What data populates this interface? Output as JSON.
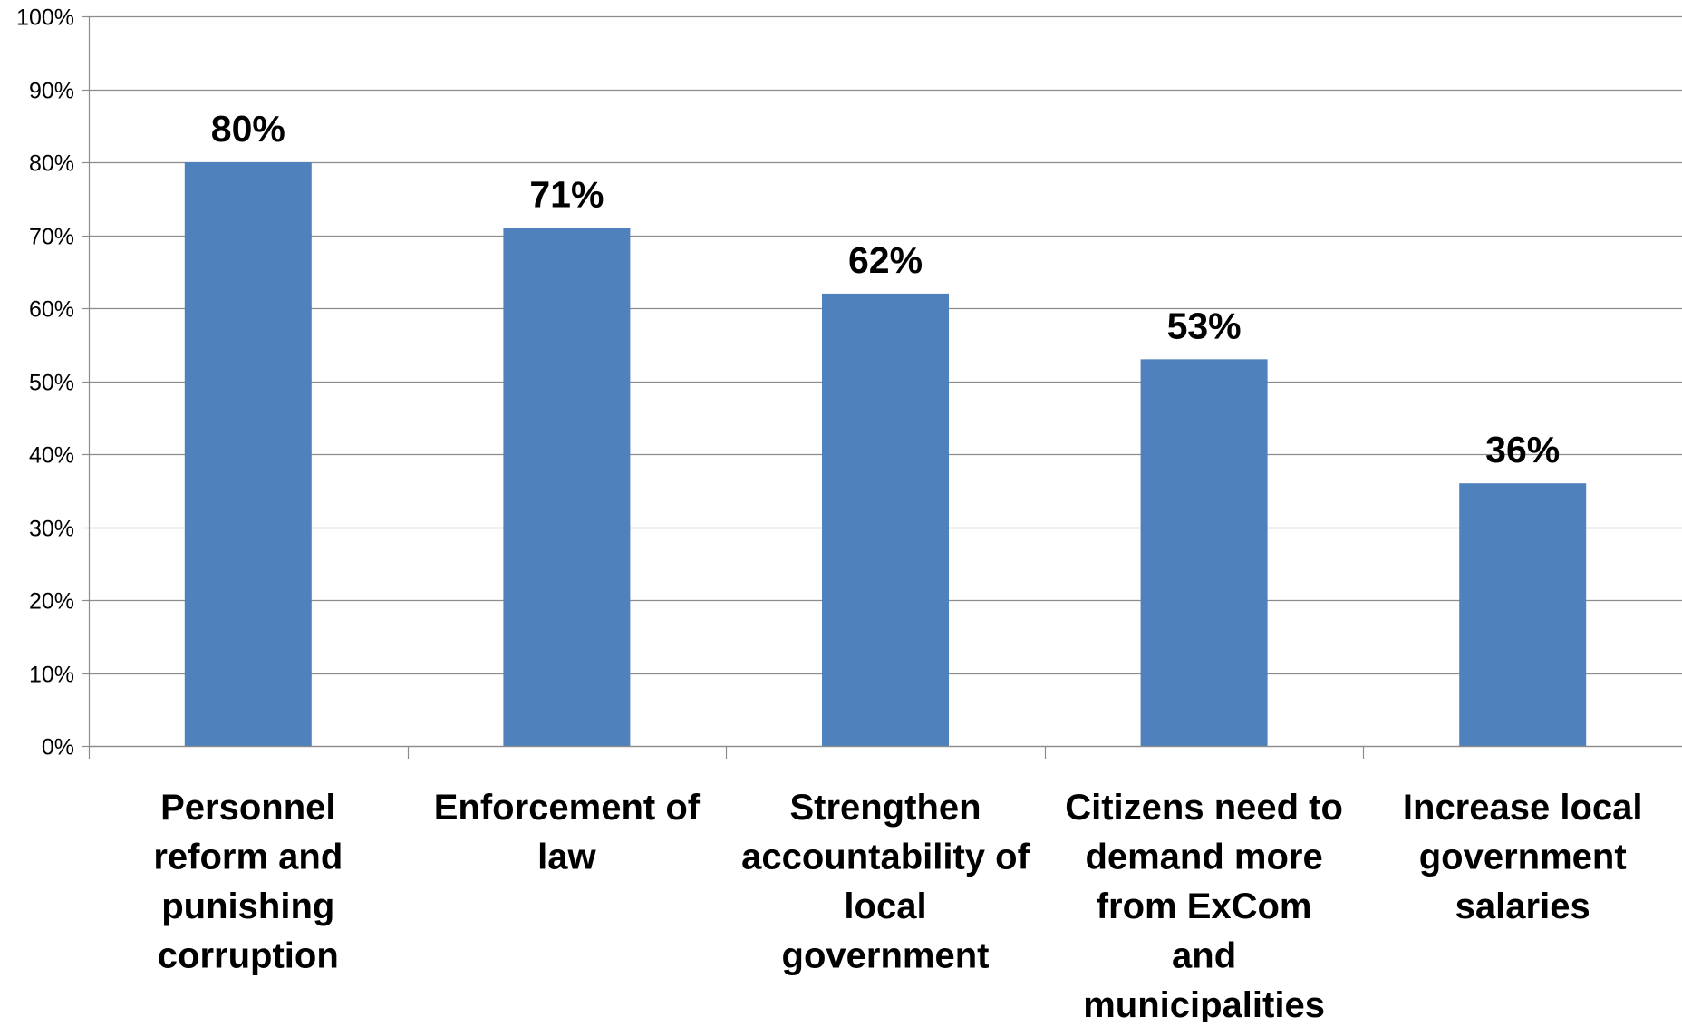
{
  "chart_data": {
    "type": "bar",
    "title": "",
    "xlabel": "",
    "ylabel": "",
    "ylim": [
      0,
      100
    ],
    "y_ticks": [
      "0%",
      "10%",
      "20%",
      "30%",
      "40%",
      "50%",
      "60%",
      "70%",
      "80%",
      "90%",
      "100%"
    ],
    "grid": true,
    "legend": "none",
    "categories": [
      "Personnel reform and punishing corruption",
      "Enforcement of law",
      "Strengthen accountability of local government",
      "Citizens need to demand more from ExCom and municipalities",
      "Increase local government salaries"
    ],
    "category_label_lines": [
      [
        "Personnel",
        "reform and",
        "punishing",
        "corruption"
      ],
      [
        "Enforcement of",
        "law"
      ],
      [
        "Strengthen",
        "accountability of",
        "local",
        "government"
      ],
      [
        "Citizens need to",
        "demand more",
        "from ExCom",
        "and",
        "municipalities"
      ],
      [
        "Increase local",
        "government",
        "salaries"
      ]
    ],
    "values": [
      80,
      71,
      62,
      53,
      36
    ],
    "data_labels": [
      "80%",
      "71%",
      "62%",
      "53%",
      "36%"
    ],
    "colors": {
      "bar": "#4f81bd",
      "grid": "#8c8c8c",
      "axis": "#8c8c8c"
    }
  }
}
